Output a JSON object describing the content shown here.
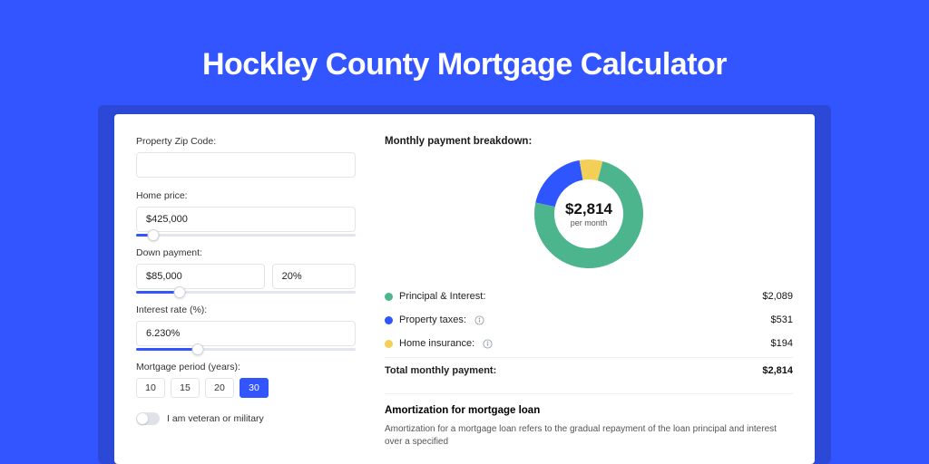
{
  "page": {
    "title": "Hockley County Mortgage Calculator",
    "bg_color": "#3355ff",
    "card_shadow_color": "#2b48d6"
  },
  "form": {
    "zip_label": "Property Zip Code:",
    "zip_value": "",
    "price_label": "Home price:",
    "price_value": "$425,000",
    "price_slider_pct": 8,
    "down_label": "Down payment:",
    "down_value": "$85,000",
    "down_pct_value": "20%",
    "down_slider_pct": 20,
    "rate_label": "Interest rate (%):",
    "rate_value": "6.230%",
    "rate_slider_pct": 28,
    "period_label": "Mortgage period (years):",
    "period_options": [
      "10",
      "15",
      "20",
      "30"
    ],
    "period_selected_index": 3,
    "veteran_label": "I am veteran or military",
    "veteran_on": false
  },
  "breakdown": {
    "title": "Monthly payment breakdown:",
    "center_value": "$2,814",
    "center_sub": "per month",
    "donut_thickness": 22,
    "items": [
      {
        "label": "Principal & Interest:",
        "value": "$2,089",
        "color": "#4cb58e",
        "pct": 74.2
      },
      {
        "label": "Property taxes:",
        "value": "$531",
        "color": "#2f55ff",
        "pct": 18.9,
        "info": true
      },
      {
        "label": "Home insurance:",
        "value": "$194",
        "color": "#f3cf57",
        "pct": 6.9,
        "info": true
      }
    ],
    "total_label": "Total monthly payment:",
    "total_value": "$2,814"
  },
  "amort": {
    "title": "Amortization for mortgage loan",
    "body": "Amortization for a mortgage loan refers to the gradual repayment of the loan principal and interest over a specified"
  }
}
